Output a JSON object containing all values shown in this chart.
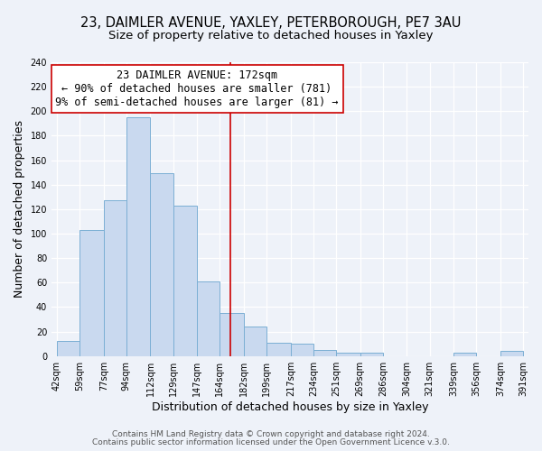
{
  "title": "23, DAIMLER AVENUE, YAXLEY, PETERBOROUGH, PE7 3AU",
  "subtitle": "Size of property relative to detached houses in Yaxley",
  "xlabel": "Distribution of detached houses by size in Yaxley",
  "ylabel": "Number of detached properties",
  "bar_edges": [
    42,
    59,
    77,
    94,
    112,
    129,
    147,
    164,
    182,
    199,
    217,
    234,
    251,
    269,
    286,
    304,
    321,
    339,
    356,
    374,
    391
  ],
  "bar_heights": [
    12,
    103,
    127,
    195,
    149,
    123,
    61,
    35,
    24,
    11,
    10,
    5,
    3,
    3,
    0,
    0,
    0,
    3,
    0,
    4
  ],
  "bar_color": "#c9d9ef",
  "bar_edge_color": "#7bafd4",
  "vline_x": 172,
  "vline_color": "#cc0000",
  "annotation_box_title": "23 DAIMLER AVENUE: 172sqm",
  "annotation_line1": "← 90% of detached houses are smaller (781)",
  "annotation_line2": "9% of semi-detached houses are larger (81) →",
  "annotation_box_edge_color": "#cc0000",
  "annotation_box_fill": "#ffffff",
  "ylim": [
    0,
    240
  ],
  "yticks": [
    0,
    20,
    40,
    60,
    80,
    100,
    120,
    140,
    160,
    180,
    200,
    220,
    240
  ],
  "tick_labels": [
    "42sqm",
    "59sqm",
    "77sqm",
    "94sqm",
    "112sqm",
    "129sqm",
    "147sqm",
    "164sqm",
    "182sqm",
    "199sqm",
    "217sqm",
    "234sqm",
    "251sqm",
    "269sqm",
    "286sqm",
    "304sqm",
    "321sqm",
    "339sqm",
    "356sqm",
    "374sqm",
    "391sqm"
  ],
  "footer1": "Contains HM Land Registry data © Crown copyright and database right 2024.",
  "footer2": "Contains public sector information licensed under the Open Government Licence v.3.0.",
  "background_color": "#eef2f9",
  "plot_bg_color": "#eef2f9",
  "title_fontsize": 10.5,
  "subtitle_fontsize": 9.5,
  "axis_label_fontsize": 9,
  "tick_fontsize": 7,
  "annotation_fontsize": 8.5,
  "footer_fontsize": 6.5
}
